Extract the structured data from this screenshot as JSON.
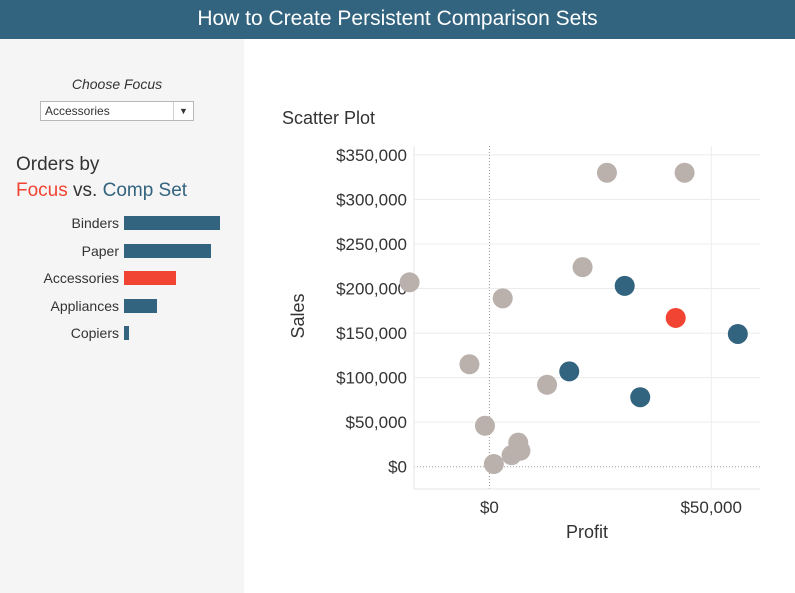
{
  "header": {
    "title": "How to Create Persistent Comparison Sets"
  },
  "sidebar": {
    "focus_label": "Choose Focus",
    "focus_value": "Accessories",
    "orders_line1": "Orders by",
    "focus_word": "Focus",
    "vs_word": "vs.",
    "comp_word": "Comp Set",
    "categories": [
      {
        "label": "Binders",
        "value": 1.0,
        "color": "#32637f"
      },
      {
        "label": "Paper",
        "value": 0.91,
        "color": "#32637f"
      },
      {
        "label": "Accessories",
        "value": 0.54,
        "color": "#f24432"
      },
      {
        "label": "Appliances",
        "value": 0.34,
        "color": "#32637f"
      },
      {
        "label": "Copiers",
        "value": 0.05,
        "color": "#32637f"
      }
    ]
  },
  "colors": {
    "focus": "#f24432",
    "comp": "#32637f",
    "other": "#bab0ac",
    "header": "#32637f"
  },
  "chart_data": {
    "type": "scatter",
    "title": "Scatter Plot",
    "xlabel": "Profit",
    "ylabel": "Sales",
    "xlim": [
      -17000,
      61000
    ],
    "ylim": [
      -25000,
      360000
    ],
    "x_ticks": [
      0,
      50000
    ],
    "x_tick_labels": [
      "$0",
      "$50,000"
    ],
    "y_ticks": [
      0,
      50000,
      100000,
      150000,
      200000,
      250000,
      300000,
      350000
    ],
    "y_tick_labels": [
      "$0",
      "$50,000",
      "$100,000",
      "$150,000",
      "$200,000",
      "$250,000",
      "$300,000",
      "$350,000"
    ],
    "series": [
      {
        "group": "focus",
        "points": [
          [
            42000,
            167000
          ]
        ]
      },
      {
        "group": "comp",
        "points": [
          [
            30500,
            203000
          ],
          [
            18000,
            107000
          ],
          [
            34000,
            78000
          ],
          [
            56000,
            149000
          ]
        ]
      },
      {
        "group": "other",
        "points": [
          [
            26500,
            330000
          ],
          [
            44000,
            330000
          ],
          [
            21000,
            224000
          ],
          [
            3000,
            189000
          ],
          [
            -18000,
            207000
          ],
          [
            -4500,
            115000
          ],
          [
            13000,
            92000
          ],
          [
            -1000,
            46000
          ],
          [
            6500,
            27000
          ],
          [
            7000,
            18000
          ],
          [
            5000,
            13000
          ],
          [
            1000,
            3000
          ]
        ]
      }
    ]
  }
}
